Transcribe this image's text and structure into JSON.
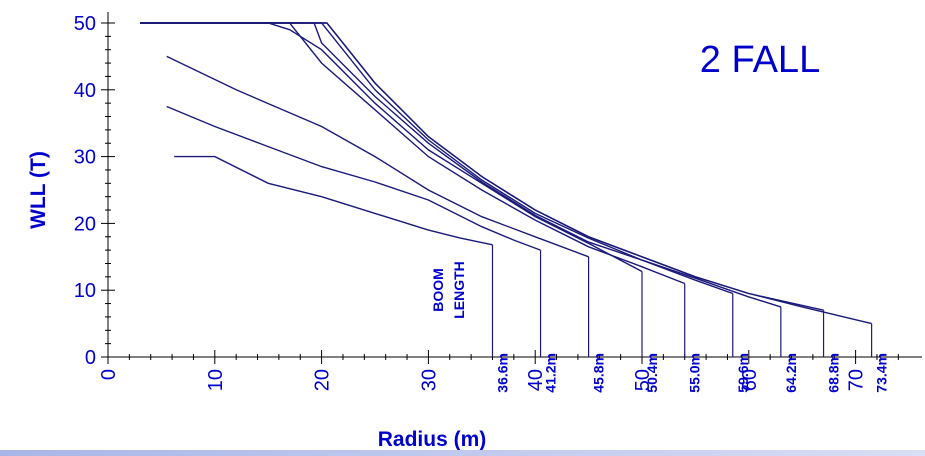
{
  "chart_data": {
    "type": "line",
    "title": "",
    "annotation": "2 FALL",
    "boom_annotation": [
      "BOOM",
      "LENGTH"
    ],
    "xlabel": "Radius (m)",
    "ylabel": "WLL (T)",
    "xlim": [
      0,
      75
    ],
    "ylim": [
      0,
      52
    ],
    "xticks": [
      "0",
      "10",
      "20",
      "30",
      "40",
      "50",
      "60",
      "70"
    ],
    "yticks": [
      "0",
      "10",
      "20",
      "30",
      "40",
      "50"
    ],
    "grid": false,
    "colors": {
      "axis": "#000000",
      "text": "#0000cc",
      "line": "#1a1a7a"
    },
    "series": [
      {
        "name": "36.6m",
        "points": [
          [
            6.2,
            30
          ],
          [
            10,
            30
          ],
          [
            15,
            26
          ],
          [
            20,
            24
          ],
          [
            25,
            21.5
          ],
          [
            30,
            19
          ],
          [
            33,
            17.8
          ],
          [
            36,
            16.8
          ]
        ]
      },
      {
        "name": "41.2m",
        "points": [
          [
            5.5,
            37.5
          ],
          [
            10,
            34.5
          ],
          [
            15,
            31.5
          ],
          [
            20,
            28.5
          ],
          [
            25,
            26.2
          ],
          [
            30,
            23.5
          ],
          [
            35,
            19.5
          ],
          [
            38,
            17.5
          ],
          [
            40.5,
            16
          ]
        ]
      },
      {
        "name": "45.8m",
        "points": [
          [
            5.5,
            45
          ],
          [
            12,
            40
          ],
          [
            20,
            34.5
          ],
          [
            25,
            30
          ],
          [
            30,
            25
          ],
          [
            35,
            21
          ],
          [
            40,
            18
          ],
          [
            45,
            15
          ]
        ]
      },
      {
        "name": "50.4m",
        "points": [
          [
            3,
            50
          ],
          [
            15,
            50
          ],
          [
            17,
            49
          ],
          [
            20,
            46
          ],
          [
            25,
            38
          ],
          [
            30,
            31
          ],
          [
            35,
            26
          ],
          [
            40,
            21
          ],
          [
            45,
            17
          ],
          [
            50,
            12.8
          ]
        ]
      },
      {
        "name": "55.0m",
        "points": [
          [
            3,
            50
          ],
          [
            17,
            50
          ],
          [
            20,
            44
          ],
          [
            25,
            37
          ],
          [
            30,
            30
          ],
          [
            35,
            25
          ],
          [
            40,
            20.5
          ],
          [
            45,
            16.5
          ],
          [
            50,
            13.5
          ],
          [
            54,
            11
          ]
        ]
      },
      {
        "name": "59.6m",
        "points": [
          [
            3,
            50
          ],
          [
            19.3,
            50
          ],
          [
            20,
            47
          ],
          [
            25,
            39
          ],
          [
            30,
            32
          ],
          [
            35,
            26.2
          ],
          [
            40,
            21.2
          ],
          [
            45,
            17.2
          ],
          [
            50,
            14.5
          ],
          [
            55,
            11.5
          ],
          [
            58.5,
            9.5
          ]
        ]
      },
      {
        "name": "64.2m",
        "points": [
          [
            3,
            50
          ],
          [
            20,
            50
          ],
          [
            25,
            40
          ],
          [
            30,
            32.5
          ],
          [
            35,
            26.5
          ],
          [
            40,
            21.5
          ],
          [
            45,
            17.8
          ],
          [
            50,
            14.5
          ],
          [
            55,
            11.8
          ],
          [
            60,
            9
          ],
          [
            63,
            7.5
          ]
        ]
      },
      {
        "name": "68.8m",
        "points": [
          [
            3,
            50
          ],
          [
            20.5,
            50
          ],
          [
            25,
            41
          ],
          [
            30,
            33
          ],
          [
            35,
            27
          ],
          [
            40,
            22
          ],
          [
            45,
            18
          ],
          [
            50,
            15
          ],
          [
            55,
            12
          ],
          [
            60,
            9.5
          ],
          [
            67,
            7
          ]
        ]
      },
      {
        "name": "73.4m",
        "points": [
          [
            3,
            50
          ],
          [
            20.5,
            50
          ],
          [
            25,
            41
          ],
          [
            30,
            33
          ],
          [
            35,
            27
          ],
          [
            40,
            22
          ],
          [
            45,
            18
          ],
          [
            50,
            15
          ],
          [
            55,
            12
          ],
          [
            60,
            9.5
          ],
          [
            65,
            7.5
          ],
          [
            71.5,
            5
          ]
        ]
      }
    ]
  }
}
